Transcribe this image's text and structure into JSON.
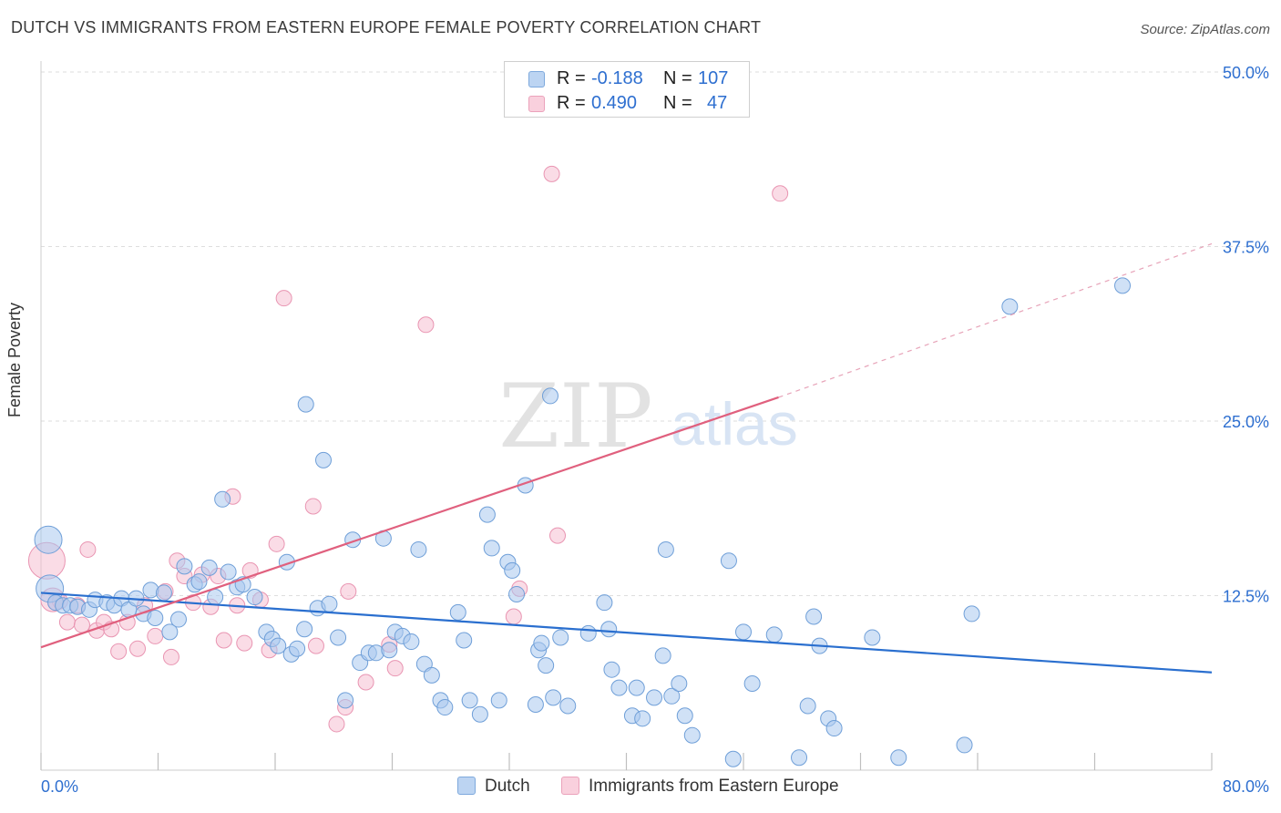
{
  "title": "DUTCH VS IMMIGRANTS FROM EASTERN EUROPE FEMALE POVERTY CORRELATION CHART",
  "source": "Source: ZipAtlas.com",
  "watermark": {
    "zip": "ZIP",
    "atlas": "atlas"
  },
  "legend": {
    "r_label": "R =",
    "n_label": "N =",
    "dutch": {
      "r": "-0.188",
      "n": "107"
    },
    "immigrants": {
      "r": "0.490",
      "n": "47"
    }
  },
  "bottom_legend": {
    "dutch": "Dutch",
    "immigrants": "Immigrants from Eastern Europe"
  },
  "colors": {
    "dutch_fill": "#a9c8ee",
    "dutch_stroke": "#6f9fd8",
    "dutch_line": "#2a6fcf",
    "imm_fill": "#f6bfd1",
    "imm_stroke": "#e995b2",
    "imm_line": "#e0607e",
    "tick_label": "#2e6fd0",
    "grid": "#dedede"
  },
  "chart_data": {
    "type": "scatter",
    "title": "DUTCH VS IMMIGRANTS FROM EASTERN EUROPE FEMALE POVERTY CORRELATION CHART",
    "xlabel": "",
    "ylabel": "Female Poverty",
    "xlim": [
      0,
      80
    ],
    "ylim": [
      0,
      50
    ],
    "x_tick_labels": [
      "0.0%",
      "80.0%"
    ],
    "y_ticks": [
      12.5,
      25.0,
      37.5,
      50.0
    ],
    "y_tick_labels": [
      "12.5%",
      "25.0%",
      "37.5%",
      "50.0%"
    ],
    "grid": "horizontal dashed",
    "legend_position": "top-center",
    "series": [
      {
        "name": "Dutch",
        "trend": {
          "x": [
            0,
            80
          ],
          "y": [
            12.7,
            7.0
          ]
        },
        "points": [
          [
            0.5,
            16.5
          ],
          [
            0.6,
            13.0
          ],
          [
            1.0,
            12.0
          ],
          [
            1.5,
            11.8
          ],
          [
            2.0,
            11.8
          ],
          [
            2.5,
            11.7
          ],
          [
            3.3,
            11.5
          ],
          [
            3.7,
            12.2
          ],
          [
            4.5,
            12.0
          ],
          [
            5.0,
            11.8
          ],
          [
            5.5,
            12.3
          ],
          [
            6.0,
            11.5
          ],
          [
            6.5,
            12.3
          ],
          [
            7.0,
            11.2
          ],
          [
            7.5,
            12.9
          ],
          [
            7.8,
            10.9
          ],
          [
            8.4,
            12.7
          ],
          [
            8.8,
            9.9
          ],
          [
            9.4,
            10.8
          ],
          [
            9.8,
            14.6
          ],
          [
            10.5,
            13.3
          ],
          [
            10.8,
            13.5
          ],
          [
            11.5,
            14.5
          ],
          [
            11.9,
            12.4
          ],
          [
            12.4,
            19.4
          ],
          [
            12.8,
            14.2
          ],
          [
            13.4,
            13.1
          ],
          [
            13.8,
            13.3
          ],
          [
            14.6,
            12.4
          ],
          [
            15.4,
            9.9
          ],
          [
            15.8,
            9.4
          ],
          [
            16.2,
            8.9
          ],
          [
            16.8,
            14.9
          ],
          [
            17.1,
            8.3
          ],
          [
            17.5,
            8.7
          ],
          [
            18.0,
            10.1
          ],
          [
            18.1,
            26.2
          ],
          [
            18.9,
            11.6
          ],
          [
            19.3,
            22.2
          ],
          [
            19.7,
            11.9
          ],
          [
            20.3,
            9.5
          ],
          [
            20.8,
            5.0
          ],
          [
            21.3,
            16.5
          ],
          [
            21.8,
            7.7
          ],
          [
            22.4,
            8.4
          ],
          [
            22.9,
            8.4
          ],
          [
            23.4,
            16.6
          ],
          [
            23.8,
            8.6
          ],
          [
            24.2,
            9.9
          ],
          [
            24.7,
            9.6
          ],
          [
            25.3,
            9.2
          ],
          [
            25.8,
            15.8
          ],
          [
            26.2,
            7.6
          ],
          [
            26.7,
            6.8
          ],
          [
            27.3,
            5.0
          ],
          [
            27.6,
            4.5
          ],
          [
            28.5,
            11.3
          ],
          [
            28.9,
            9.3
          ],
          [
            29.3,
            5.0
          ],
          [
            30.0,
            4.0
          ],
          [
            30.5,
            18.3
          ],
          [
            30.8,
            15.9
          ],
          [
            31.3,
            5.0
          ],
          [
            31.9,
            14.9
          ],
          [
            32.2,
            14.3
          ],
          [
            32.5,
            12.6
          ],
          [
            33.1,
            20.4
          ],
          [
            33.8,
            4.7
          ],
          [
            34.0,
            8.6
          ],
          [
            34.2,
            9.1
          ],
          [
            34.5,
            7.5
          ],
          [
            34.8,
            26.8
          ],
          [
            35.0,
            5.2
          ],
          [
            35.5,
            9.5
          ],
          [
            36.0,
            4.6
          ],
          [
            37.4,
            9.8
          ],
          [
            38.5,
            12.0
          ],
          [
            38.8,
            10.1
          ],
          [
            39.0,
            7.2
          ],
          [
            39.5,
            5.9
          ],
          [
            40.4,
            3.9
          ],
          [
            40.7,
            5.9
          ],
          [
            41.1,
            3.7
          ],
          [
            41.9,
            5.2
          ],
          [
            42.5,
            8.2
          ],
          [
            42.7,
            15.8
          ],
          [
            43.1,
            5.3
          ],
          [
            43.6,
            6.2
          ],
          [
            44.0,
            3.9
          ],
          [
            44.5,
            2.5
          ],
          [
            47.0,
            15.0
          ],
          [
            47.3,
            0.8
          ],
          [
            48.0,
            9.9
          ],
          [
            48.6,
            6.2
          ],
          [
            50.1,
            9.7
          ],
          [
            51.8,
            0.9
          ],
          [
            52.4,
            4.6
          ],
          [
            52.8,
            11.0
          ],
          [
            53.2,
            8.9
          ],
          [
            53.8,
            3.7
          ],
          [
            54.2,
            3.0
          ],
          [
            56.8,
            9.5
          ],
          [
            58.6,
            0.9
          ],
          [
            63.1,
            1.8
          ],
          [
            63.6,
            11.2
          ],
          [
            66.2,
            33.2
          ],
          [
            73.9,
            34.7
          ]
        ]
      },
      {
        "name": "Immigrants from Eastern Europe",
        "trend": {
          "x": [
            0,
            50.4
          ],
          "y": [
            8.8,
            26.7
          ]
        },
        "trend_dashed_extension": {
          "x": [
            50.4,
            80
          ],
          "y": [
            26.7,
            37.7
          ]
        },
        "points": [
          [
            0.4,
            15.0
          ],
          [
            0.8,
            12.2
          ],
          [
            1.3,
            12.1
          ],
          [
            1.8,
            10.6
          ],
          [
            2.5,
            11.8
          ],
          [
            2.8,
            10.4
          ],
          [
            3.2,
            15.8
          ],
          [
            3.8,
            10.0
          ],
          [
            4.3,
            10.6
          ],
          [
            4.8,
            10.1
          ],
          [
            5.3,
            8.5
          ],
          [
            5.9,
            10.6
          ],
          [
            6.6,
            8.7
          ],
          [
            7.1,
            11.8
          ],
          [
            7.8,
            9.6
          ],
          [
            8.5,
            12.8
          ],
          [
            8.9,
            8.1
          ],
          [
            9.3,
            15.0
          ],
          [
            9.8,
            13.9
          ],
          [
            10.4,
            12.0
          ],
          [
            11.0,
            14.0
          ],
          [
            11.6,
            11.7
          ],
          [
            12.1,
            13.9
          ],
          [
            12.5,
            9.3
          ],
          [
            13.1,
            19.6
          ],
          [
            13.4,
            11.8
          ],
          [
            13.9,
            9.1
          ],
          [
            14.3,
            14.3
          ],
          [
            15.0,
            12.2
          ],
          [
            15.6,
            8.6
          ],
          [
            16.1,
            16.2
          ],
          [
            16.6,
            33.8
          ],
          [
            18.6,
            18.9
          ],
          [
            18.8,
            8.9
          ],
          [
            20.2,
            3.3
          ],
          [
            20.8,
            4.5
          ],
          [
            21.0,
            12.8
          ],
          [
            22.2,
            6.3
          ],
          [
            23.8,
            9.0
          ],
          [
            24.2,
            7.3
          ],
          [
            26.3,
            31.9
          ],
          [
            32.3,
            11.0
          ],
          [
            32.7,
            13.0
          ],
          [
            34.9,
            42.7
          ],
          [
            35.3,
            16.8
          ],
          [
            50.5,
            41.3
          ],
          [
            1.0,
            12.0
          ]
        ]
      }
    ]
  }
}
